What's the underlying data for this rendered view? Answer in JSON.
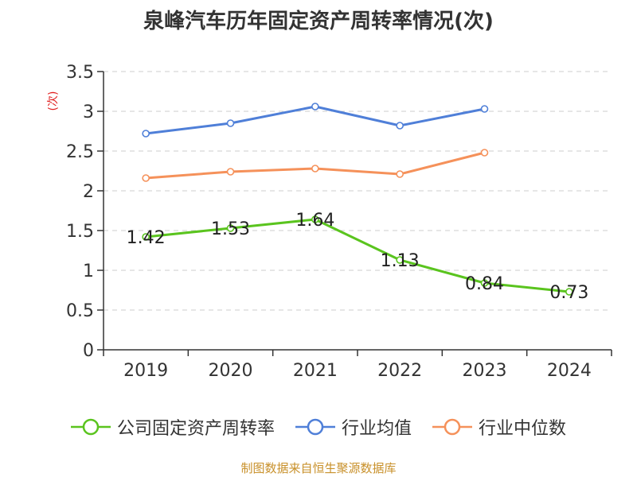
{
  "chart_data": {
    "type": "line",
    "title": "泉峰汽车历年固定资产周转率情况(次)",
    "ylabel": "(次)",
    "xlabel": "",
    "categories": [
      "2019",
      "2020",
      "2021",
      "2022",
      "2023",
      "2024"
    ],
    "ylim": [
      0,
      3.5
    ],
    "yticks": [
      0,
      0.5,
      1,
      1.5,
      2,
      2.5,
      3,
      3.5
    ],
    "ytick_labels": [
      "0",
      "0.5",
      "1",
      "1.5",
      "2",
      "2.5",
      "3",
      "3.5"
    ],
    "grid": true,
    "legend_position": "bottom",
    "series": [
      {
        "name": "公司固定资产周转率",
        "color": "#5ac41e",
        "values": [
          1.42,
          1.53,
          1.64,
          1.13,
          0.84,
          0.73
        ],
        "labels": [
          "1.42",
          "1.53",
          "1.64",
          "1.13",
          "0.84",
          "0.73"
        ]
      },
      {
        "name": "行业均值",
        "color": "#4f7fd8",
        "values": [
          2.72,
          2.85,
          3.06,
          2.82,
          3.03,
          null
        ]
      },
      {
        "name": "行业中位数",
        "color": "#f5915a",
        "values": [
          2.16,
          2.24,
          2.28,
          2.21,
          2.48,
          null
        ]
      }
    ]
  },
  "source": "制图数据来自恒生聚源数据库",
  "colors": {
    "axis": "#333333",
    "grid": "#cccccc",
    "ylabel": "#e02020",
    "source": "#c8902a"
  }
}
